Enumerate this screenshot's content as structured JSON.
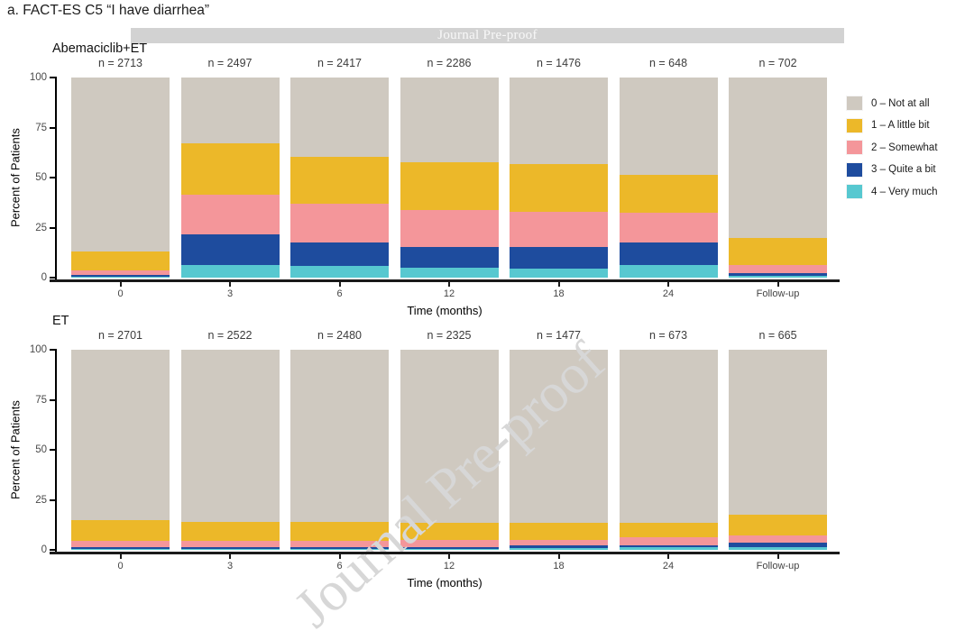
{
  "figure_title": "a. FACT-ES C5 “I have diarrhea”",
  "watermark": {
    "banner_text": "Journal Pre-proof",
    "diagonal_text": "Journal Pre-proof",
    "banner_color": "#d2d2d2",
    "diagonal_color": "#d7d7d7"
  },
  "colors": {
    "cat0": "#cfc9c0",
    "cat1": "#ecb829",
    "cat2": "#f4969a",
    "cat3": "#1e4c9e",
    "cat4": "#57c8d0"
  },
  "legend": {
    "position": "right",
    "items": [
      {
        "label": "0 – Not at all",
        "color_key": "cat0"
      },
      {
        "label": "1 – A little bit",
        "color_key": "cat1"
      },
      {
        "label": "2 – Somewhat",
        "color_key": "cat2"
      },
      {
        "label": "3 – Quite a bit",
        "color_key": "cat3"
      },
      {
        "label": "4 – Very much",
        "color_key": "cat4"
      }
    ]
  },
  "axis": {
    "y_label": "Percent of Patients",
    "x_label": "Time (months)",
    "y_ticks": [
      "100",
      "75",
      "50",
      "25",
      "0"
    ],
    "ylim": [
      0,
      100
    ],
    "grid": false
  },
  "chart_data": [
    {
      "type": "bar",
      "stacked": true,
      "panel_title": "Abemaciclib+ET",
      "categories": [
        "0",
        "3",
        "6",
        "12",
        "18",
        "24",
        "Follow-up"
      ],
      "n_labels": [
        "n = 2713",
        "n = 2497",
        "n = 2417",
        "n = 2286",
        "n = 1476",
        "n = 648",
        "n = 702"
      ],
      "xlabel": "Time (months)",
      "ylabel": "Percent of Patients",
      "ylim": [
        0,
        100
      ],
      "series": [
        {
          "name": "4 – Very much",
          "color_key": "cat4",
          "values": [
            0.4,
            6.5,
            6.0,
            5.0,
            4.5,
            6.5,
            1.0
          ]
        },
        {
          "name": "3 – Quite a bit",
          "color_key": "cat3",
          "values": [
            1.0,
            15.0,
            11.5,
            10.5,
            11.0,
            11.0,
            1.3
          ]
        },
        {
          "name": "2 – Somewhat",
          "color_key": "cat2",
          "values": [
            2.4,
            20.0,
            19.5,
            18.5,
            17.5,
            15.0,
            4.2
          ]
        },
        {
          "name": "1 – A little bit",
          "color_key": "cat1",
          "values": [
            9.2,
            25.5,
            23.5,
            23.5,
            24.0,
            19.0,
            13.5
          ]
        },
        {
          "name": "0 – Not at all",
          "color_key": "cat0",
          "values": [
            87.0,
            33.0,
            39.5,
            42.5,
            43.0,
            48.5,
            80.0
          ]
        }
      ]
    },
    {
      "type": "bar",
      "stacked": true,
      "panel_title": "ET",
      "categories": [
        "0",
        "3",
        "6",
        "12",
        "18",
        "24",
        "Follow-up"
      ],
      "n_labels": [
        "n = 2701",
        "n = 2522",
        "n = 2480",
        "n = 2325",
        "n = 1477",
        "n = 673",
        "n = 665"
      ],
      "xlabel": "Time (months)",
      "ylabel": "Percent of Patients",
      "ylim": [
        0,
        100
      ],
      "series": [
        {
          "name": "4 – Very much",
          "color_key": "cat4",
          "values": [
            0.4,
            0.5,
            0.4,
            0.5,
            1.0,
            1.3,
            1.2
          ]
        },
        {
          "name": "3 – Quite a bit",
          "color_key": "cat3",
          "values": [
            0.9,
            0.8,
            0.9,
            1.0,
            1.4,
            0.9,
            2.4
          ]
        },
        {
          "name": "2 – Somewhat",
          "color_key": "cat2",
          "values": [
            3.4,
            3.2,
            3.3,
            3.4,
            2.6,
            4.3,
            3.6
          ]
        },
        {
          "name": "1 – A little bit",
          "color_key": "cat1",
          "values": [
            10.1,
            9.3,
            9.2,
            8.6,
            8.5,
            7.0,
            10.3
          ]
        },
        {
          "name": "0 – Not at all",
          "color_key": "cat0",
          "values": [
            85.2,
            86.2,
            86.2,
            86.5,
            86.5,
            86.5,
            82.5
          ]
        }
      ]
    }
  ]
}
